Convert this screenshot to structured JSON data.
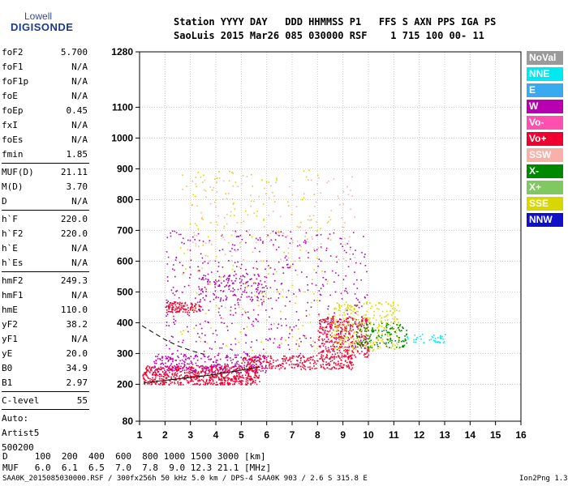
{
  "logo": {
    "line1": "Lowell",
    "line2": "DIGISONDE"
  },
  "header": {
    "line1": "Station YYYY DAY   DDD HHMMSS P1   FFS S AXN PPS IGA PS",
    "line2": "SaoLuis 2015 Mar26 085 030000 RSF    1 715 100 00- 11"
  },
  "parameters": [
    {
      "label": "foF2",
      "value": "5.700"
    },
    {
      "label": "foF1",
      "value": "N/A"
    },
    {
      "label": "foF1p",
      "value": "N/A"
    },
    {
      "label": "foE",
      "value": "N/A"
    },
    {
      "label": "foEp",
      "value": "0.45"
    },
    {
      "label": "fxI",
      "value": "N/A"
    },
    {
      "label": "foEs",
      "value": "N/A"
    },
    {
      "label": "fmin",
      "value": "1.85"
    },
    {
      "label": "MUF(D)",
      "value": "21.11"
    },
    {
      "label": "M(D)",
      "value": "3.70"
    },
    {
      "label": "D",
      "value": "N/A"
    },
    {
      "label": "h`F",
      "value": "220.0"
    },
    {
      "label": "h`F2",
      "value": "220.0"
    },
    {
      "label": "h`E",
      "value": "N/A"
    },
    {
      "label": "h`Es",
      "value": "N/A"
    },
    {
      "label": "hmF2",
      "value": "249.3"
    },
    {
      "label": "hmF1",
      "value": "N/A"
    },
    {
      "label": "hmE",
      "value": "110.0"
    },
    {
      "label": "yF2",
      "value": "38.2"
    },
    {
      "label": "yF1",
      "value": "N/A"
    },
    {
      "label": "yE",
      "value": "20.0"
    },
    {
      "label": "B0",
      "value": "34.9"
    },
    {
      "label": "B1",
      "value": "2.97"
    },
    {
      "label": "C-level",
      "value": "55"
    }
  ],
  "autoscaling": {
    "line1": "Auto:",
    "line2": "Artist5",
    "line3": "500200"
  },
  "legend": [
    {
      "label": "NoVal",
      "color": "#9a9a9a"
    },
    {
      "label": "NNE",
      "color": "#00e8f0"
    },
    {
      "label": "E",
      "color": "#3aaaf0"
    },
    {
      "label": "W",
      "color": "#b800b0"
    },
    {
      "label": "Vo-",
      "color": "#ff50b0"
    },
    {
      "label": "Vo+",
      "color": "#f00030"
    },
    {
      "label": "SSW",
      "color": "#f8b0a8"
    },
    {
      "label": "X-",
      "color": "#008800"
    },
    {
      "label": "X+",
      "color": "#80c860"
    },
    {
      "label": "SSE",
      "color": "#d8d800"
    },
    {
      "label": "NNW",
      "color": "#1010c8"
    }
  ],
  "bottom": {
    "d_line": "D     100  200  400  600  800 1000 1500 3000 [km]",
    "muf_line": "MUF   6.0  6.1  6.5  7.0  7.8  9.0 12.3 21.1 [MHz]",
    "footer": "SAA0K_2015085030000.RSF / 300fx256h 50 kHz 5.0 km / DPS-4 SAA0K 903 / 2.6 S 315.8 E",
    "version": "Ion2Png 1.3.17"
  },
  "chart_data": {
    "type": "scatter",
    "x_ticks": [
      1,
      2,
      3,
      4,
      5,
      6,
      7,
      8,
      9,
      10,
      11,
      12,
      13,
      14,
      15,
      16
    ],
    "y_ticks": [
      80,
      200,
      300,
      400,
      500,
      600,
      700,
      800,
      900,
      1000,
      1100,
      1280
    ],
    "xlim": [
      1,
      16
    ],
    "ylim": [
      80,
      1280
    ],
    "grid": true,
    "traces": [
      {
        "name": "profile",
        "style": "solid",
        "x": [
          1.2,
          2.0,
          3.0,
          4.0,
          5.0,
          5.7
        ],
        "y": [
          205,
          213,
          222,
          232,
          246,
          256
        ]
      },
      {
        "name": "model",
        "style": "dashed",
        "x": [
          1.1,
          1.5,
          2.0,
          2.5,
          3.0,
          3.5
        ],
        "y": [
          390,
          370,
          345,
          325,
          310,
          298
        ]
      }
    ],
    "echo_clusters": [
      {
        "x": [
          1.1,
          5.7
        ],
        "y": [
          200,
          262
        ],
        "count": 700,
        "color": "Vo+"
      },
      {
        "x": [
          1.5,
          6.0
        ],
        "y": [
          240,
          300
        ],
        "count": 280,
        "color": "W"
      },
      {
        "x": [
          5.0,
          9.4
        ],
        "y": [
          250,
          295
        ],
        "count": 300,
        "color": "Vo+"
      },
      {
        "x": [
          8.0,
          10.0
        ],
        "y": [
          290,
          420
        ],
        "count": 350,
        "color": "Vo+"
      },
      {
        "x": [
          8.5,
          11.2
        ],
        "y": [
          310,
          470
        ],
        "count": 300,
        "color": "SSE"
      },
      {
        "x": [
          9.5,
          11.5
        ],
        "y": [
          320,
          400
        ],
        "count": 150,
        "color": "X-"
      },
      {
        "x": [
          11.5,
          13.0
        ],
        "y": [
          335,
          365
        ],
        "count": 40,
        "color": "NNE"
      },
      {
        "x": [
          2.0,
          3.4
        ],
        "y": [
          435,
          470
        ],
        "count": 120,
        "color": "Vo+"
      },
      {
        "x": [
          3.3,
          6.0
        ],
        "y": [
          470,
          560
        ],
        "count": 150,
        "color": "W"
      },
      {
        "x": [
          2.0,
          10.0
        ],
        "y": [
          300,
          700
        ],
        "count": 500,
        "color": "W"
      },
      {
        "x": [
          3.0,
          9.5
        ],
        "y": [
          600,
          880
        ],
        "count": 160,
        "color": "SSW"
      },
      {
        "x": [
          2.5,
          8.5
        ],
        "y": [
          300,
          900
        ],
        "count": 200,
        "color": "SSE"
      }
    ]
  }
}
